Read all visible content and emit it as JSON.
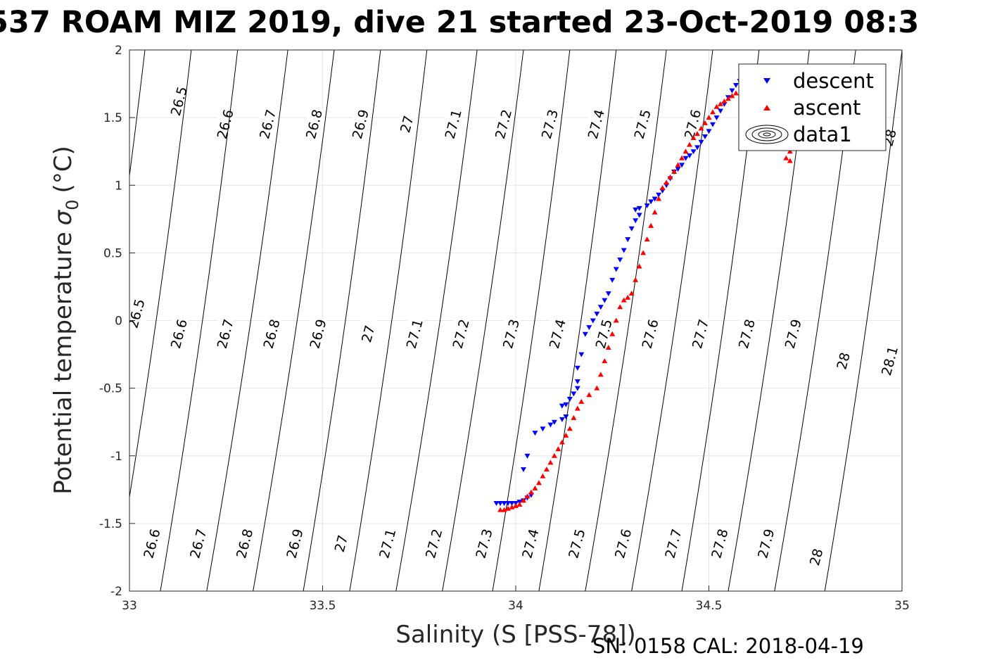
{
  "chart_data": {
    "type": "scatter",
    "title": "537 ROAM MIZ 2019, dive 21 started 23-Oct-2019 08:3",
    "xlabel": "Salinity (S [PSS-78])",
    "ylabel": "Potential temperature",
    "ylabel_symbol": "σ",
    "ylabel_subscript": "0",
    "ylabel_unit": "(°C)",
    "xlim": [
      33,
      35
    ],
    "ylim": [
      -2,
      2
    ],
    "xticks": [
      "33",
      "33.5",
      "34",
      "34.5",
      "35"
    ],
    "yticks": [
      "2",
      "1.5",
      "1",
      "0.5",
      "0",
      "-0.5",
      "-1",
      "-1.5",
      "-2"
    ],
    "grid": true,
    "legend_position": "top-right",
    "footer": "SN: 0158  CAL: 2018-04-19",
    "density_contours": [
      {
        "label": "26.5",
        "x_at_top": 33.04,
        "x_at_bottom": 32.84,
        "label_points": [
          [
            33.13,
            1.62
          ],
          [
            33.02,
            0.05
          ]
        ]
      },
      {
        "label": "26.6",
        "x_at_top": 33.16,
        "x_at_bottom": 32.96,
        "label_points": [
          [
            33.25,
            1.45
          ],
          [
            33.13,
            -0.1
          ],
          [
            33.06,
            -1.65
          ]
        ]
      },
      {
        "label": "26.7",
        "x_at_top": 33.28,
        "x_at_bottom": 33.08,
        "label_points": [
          [
            33.36,
            1.45
          ],
          [
            33.25,
            -0.1
          ],
          [
            33.18,
            -1.65
          ]
        ]
      },
      {
        "label": "26.8",
        "x_at_top": 33.41,
        "x_at_bottom": 33.2,
        "label_points": [
          [
            33.48,
            1.45
          ],
          [
            33.37,
            -0.1
          ],
          [
            33.3,
            -1.65
          ]
        ]
      },
      {
        "label": "26.9",
        "x_at_top": 33.53,
        "x_at_bottom": 33.32,
        "label_points": [
          [
            33.6,
            1.45
          ],
          [
            33.49,
            -0.1
          ],
          [
            33.43,
            -1.65
          ]
        ]
      },
      {
        "label": "27",
        "x_at_top": 33.65,
        "x_at_bottom": 33.45,
        "label_points": [
          [
            33.72,
            1.45
          ],
          [
            33.62,
            -0.1
          ],
          [
            33.55,
            -1.65
          ]
        ]
      },
      {
        "label": "27.1",
        "x_at_top": 33.77,
        "x_at_bottom": 33.57,
        "label_points": [
          [
            33.84,
            1.45
          ],
          [
            33.74,
            -0.1
          ],
          [
            33.67,
            -1.65
          ]
        ]
      },
      {
        "label": "27.2",
        "x_at_top": 33.9,
        "x_at_bottom": 33.69,
        "label_points": [
          [
            33.97,
            1.45
          ],
          [
            33.86,
            -0.1
          ],
          [
            33.79,
            -1.65
          ]
        ]
      },
      {
        "label": "27.3",
        "x_at_top": 34.02,
        "x_at_bottom": 33.81,
        "label_points": [
          [
            34.09,
            1.45
          ],
          [
            33.99,
            -0.1
          ],
          [
            33.92,
            -1.65
          ]
        ]
      },
      {
        "label": "27.4",
        "x_at_top": 34.14,
        "x_at_bottom": 33.94,
        "label_points": [
          [
            34.21,
            1.45
          ],
          [
            34.11,
            -0.1
          ],
          [
            34.04,
            -1.65
          ]
        ]
      },
      {
        "label": "27.5",
        "x_at_top": 34.26,
        "x_at_bottom": 34.06,
        "label_points": [
          [
            34.33,
            1.45
          ],
          [
            34.23,
            -0.1
          ],
          [
            34.16,
            -1.65
          ]
        ]
      },
      {
        "label": "27.6",
        "x_at_top": 34.39,
        "x_at_bottom": 34.18,
        "label_points": [
          [
            34.46,
            1.45
          ],
          [
            34.35,
            -0.1
          ],
          [
            34.28,
            -1.65
          ]
        ]
      },
      {
        "label": "27.7",
        "x_at_top": 34.51,
        "x_at_bottom": 34.3,
        "label_points": [
          [
            34.48,
            -0.1
          ],
          [
            34.41,
            -1.65
          ]
        ]
      },
      {
        "label": "27.8",
        "x_at_top": 34.63,
        "x_at_bottom": 34.43,
        "label_points": [
          [
            34.6,
            -0.1
          ],
          [
            34.53,
            -1.65
          ]
        ]
      },
      {
        "label": "27.9",
        "x_at_top": 34.76,
        "x_at_bottom": 34.55,
        "label_points": [
          [
            34.72,
            -0.1
          ],
          [
            34.65,
            -1.65
          ]
        ]
      },
      {
        "label": "28",
        "x_at_top": 34.88,
        "x_at_bottom": 34.67,
        "label_points": [
          [
            34.97,
            1.35
          ],
          [
            34.85,
            -0.3
          ],
          [
            34.78,
            -1.75
          ]
        ]
      },
      {
        "label": "28.1",
        "x_at_top": 35.0,
        "x_at_bottom": 34.8,
        "label_points": [
          [
            34.97,
            -0.3
          ]
        ]
      }
    ],
    "series": [
      {
        "name": "descent",
        "marker": "triangle-down",
        "color": "#0000ff",
        "points": [
          [
            33.95,
            -1.35
          ],
          [
            33.96,
            -1.35
          ],
          [
            33.97,
            -1.35
          ],
          [
            33.98,
            -1.35
          ],
          [
            33.99,
            -1.35
          ],
          [
            34.0,
            -1.35
          ],
          [
            34.01,
            -1.34
          ],
          [
            34.02,
            -1.33
          ],
          [
            34.03,
            -1.31
          ],
          [
            34.04,
            -1.29
          ],
          [
            34.02,
            -1.1
          ],
          [
            34.03,
            -1.0
          ],
          [
            34.05,
            -0.83
          ],
          [
            34.07,
            -0.8
          ],
          [
            34.09,
            -0.77
          ],
          [
            34.1,
            -0.75
          ],
          [
            34.12,
            -0.73
          ],
          [
            34.13,
            -0.71
          ],
          [
            34.12,
            -0.63
          ],
          [
            34.13,
            -0.62
          ],
          [
            34.14,
            -0.58
          ],
          [
            34.15,
            -0.54
          ],
          [
            34.16,
            -0.5
          ],
          [
            34.16,
            -0.45
          ],
          [
            34.16,
            -0.35
          ],
          [
            34.17,
            -0.25
          ],
          [
            34.18,
            -0.1
          ],
          [
            34.19,
            -0.05
          ],
          [
            34.2,
            0.0
          ],
          [
            34.21,
            0.05
          ],
          [
            34.22,
            0.1
          ],
          [
            34.23,
            0.15
          ],
          [
            34.24,
            0.2
          ],
          [
            34.25,
            0.3
          ],
          [
            34.26,
            0.38
          ],
          [
            34.27,
            0.45
          ],
          [
            34.28,
            0.52
          ],
          [
            34.29,
            0.6
          ],
          [
            34.3,
            0.68
          ],
          [
            34.31,
            0.74
          ],
          [
            34.32,
            0.78
          ],
          [
            34.31,
            0.82
          ],
          [
            34.32,
            0.83
          ],
          [
            34.34,
            0.85
          ],
          [
            34.35,
            0.88
          ],
          [
            34.36,
            0.9
          ],
          [
            34.37,
            0.93
          ],
          [
            34.38,
            0.96
          ],
          [
            34.39,
            1.0
          ],
          [
            34.4,
            1.05
          ],
          [
            34.41,
            1.1
          ],
          [
            34.42,
            1.12
          ],
          [
            34.43,
            1.15
          ],
          [
            34.44,
            1.2
          ],
          [
            34.45,
            1.22
          ],
          [
            34.46,
            1.25
          ],
          [
            34.47,
            1.28
          ],
          [
            34.48,
            1.32
          ],
          [
            34.49,
            1.36
          ],
          [
            34.5,
            1.4
          ],
          [
            34.51,
            1.45
          ],
          [
            34.52,
            1.5
          ],
          [
            34.53,
            1.55
          ],
          [
            34.54,
            1.6
          ],
          [
            34.55,
            1.65
          ],
          [
            34.56,
            1.7
          ],
          [
            34.57,
            1.74
          ],
          [
            34.58,
            1.77
          ],
          [
            34.59,
            1.79
          ],
          [
            34.61,
            1.8
          ]
        ]
      },
      {
        "name": "ascent",
        "marker": "triangle-up",
        "color": "#ff0000",
        "points": [
          [
            33.96,
            -1.4
          ],
          [
            33.97,
            -1.4
          ],
          [
            33.98,
            -1.39
          ],
          [
            33.99,
            -1.38
          ],
          [
            34.0,
            -1.37
          ],
          [
            34.01,
            -1.36
          ],
          [
            34.02,
            -1.33
          ],
          [
            34.03,
            -1.3
          ],
          [
            34.04,
            -1.27
          ],
          [
            34.05,
            -1.24
          ],
          [
            34.06,
            -1.2
          ],
          [
            34.07,
            -1.15
          ],
          [
            34.08,
            -1.1
          ],
          [
            34.09,
            -1.05
          ],
          [
            34.1,
            -1.0
          ],
          [
            34.11,
            -0.95
          ],
          [
            34.12,
            -0.9
          ],
          [
            34.13,
            -0.85
          ],
          [
            34.14,
            -0.8
          ],
          [
            34.15,
            -0.72
          ],
          [
            34.16,
            -0.65
          ],
          [
            34.17,
            -0.6
          ],
          [
            34.19,
            -0.55
          ],
          [
            34.21,
            -0.5
          ],
          [
            34.22,
            -0.4
          ],
          [
            34.23,
            -0.3
          ],
          [
            34.24,
            -0.2
          ],
          [
            34.25,
            -0.1
          ],
          [
            34.26,
            0.0
          ],
          [
            34.27,
            0.1
          ],
          [
            34.28,
            0.15
          ],
          [
            34.29,
            0.17
          ],
          [
            34.3,
            0.2
          ],
          [
            34.31,
            0.3
          ],
          [
            34.32,
            0.4
          ],
          [
            34.33,
            0.5
          ],
          [
            34.34,
            0.6
          ],
          [
            34.35,
            0.7
          ],
          [
            34.36,
            0.8
          ],
          [
            34.37,
            0.9
          ],
          [
            34.38,
            0.98
          ],
          [
            34.39,
            1.02
          ],
          [
            34.4,
            1.06
          ],
          [
            34.41,
            1.1
          ],
          [
            34.42,
            1.15
          ],
          [
            34.43,
            1.2
          ],
          [
            34.44,
            1.25
          ],
          [
            34.45,
            1.3
          ],
          [
            34.46,
            1.35
          ],
          [
            34.47,
            1.38
          ],
          [
            34.48,
            1.42
          ],
          [
            34.49,
            1.46
          ],
          [
            34.5,
            1.5
          ],
          [
            34.51,
            1.54
          ],
          [
            34.52,
            1.58
          ],
          [
            34.53,
            1.6
          ],
          [
            34.54,
            1.62
          ],
          [
            34.55,
            1.64
          ],
          [
            34.56,
            1.66
          ],
          [
            34.57,
            1.68
          ],
          [
            34.66,
            1.5
          ],
          [
            34.68,
            1.4
          ],
          [
            34.7,
            1.3
          ],
          [
            34.71,
            1.25
          ],
          [
            34.7,
            1.2
          ],
          [
            34.71,
            1.18
          ]
        ]
      },
      {
        "name": "data1",
        "marker": "contour-ellipses",
        "color": "#000000",
        "points": []
      }
    ]
  }
}
